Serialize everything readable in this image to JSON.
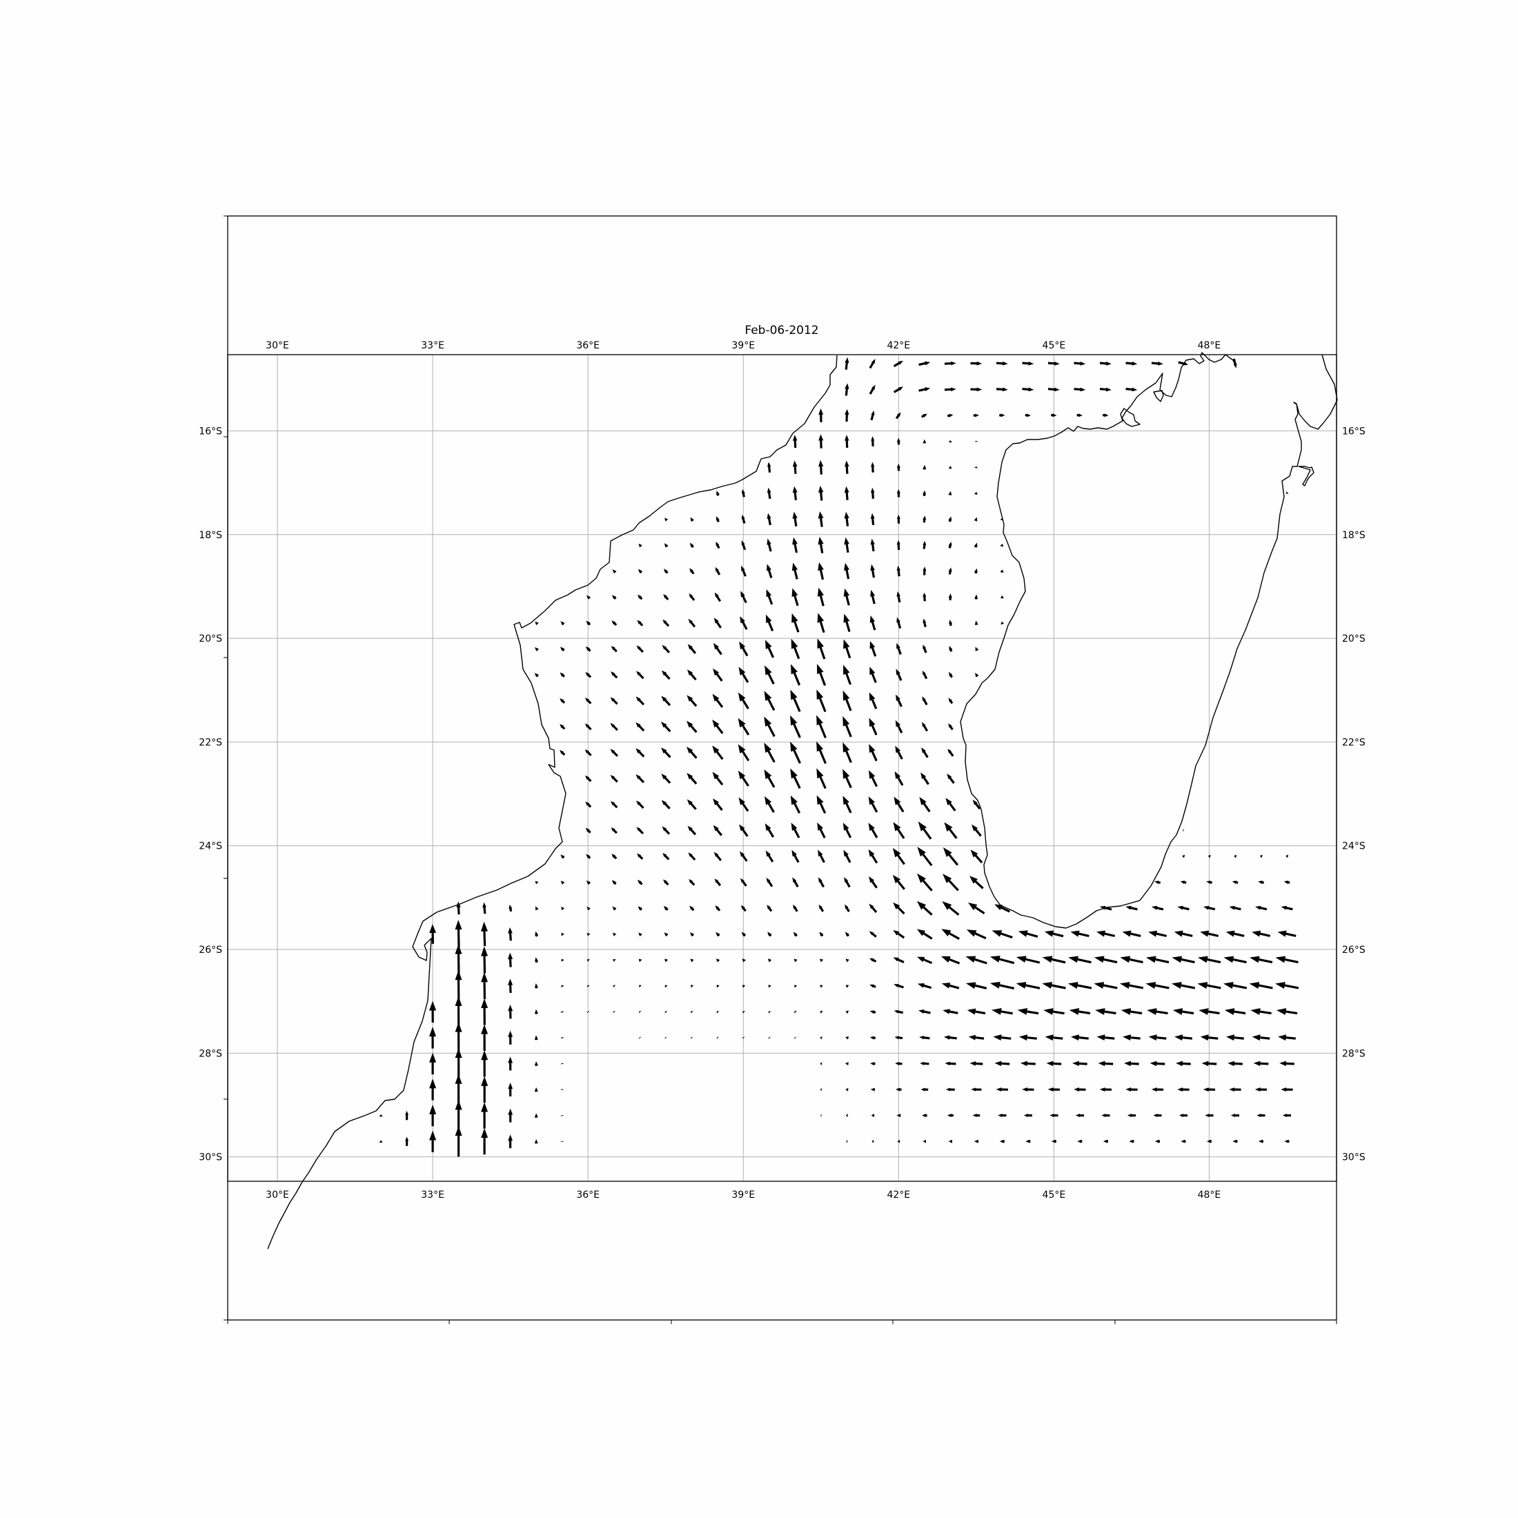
{
  "title": "Feb-06-2012",
  "lon_ticks": [
    {
      "value": 30,
      "label": "30°E"
    },
    {
      "value": 33,
      "label": "33°E"
    },
    {
      "value": 36,
      "label": "36°E"
    },
    {
      "value": 39,
      "label": "39°E"
    },
    {
      "value": 42,
      "label": "42°E"
    },
    {
      "value": 45,
      "label": "45°E"
    },
    {
      "value": 48,
      "label": "48°E"
    }
  ],
  "lat_ticks": [
    {
      "value": -16,
      "label": "16°S"
    },
    {
      "value": -18,
      "label": "18°S"
    },
    {
      "value": -20,
      "label": "20°S"
    },
    {
      "value": -22,
      "label": "22°S"
    },
    {
      "value": -24,
      "label": "24°S"
    },
    {
      "value": -26,
      "label": "26°S"
    },
    {
      "value": -28,
      "label": "28°S"
    },
    {
      "value": -30,
      "label": "30°S"
    }
  ],
  "extent": {
    "lon_min": 29.04,
    "lon_max": 50.46,
    "lat_min": -30.47,
    "lat_max": -14.53
  },
  "grid": true,
  "vector_field": {
    "description_type": "quiver",
    "lon_start": 31.5,
    "lon_step": 0.5,
    "lon_count": 37,
    "lat_start": -29.7,
    "lat_step": 0.5,
    "lat_count": 31,
    "pattern": "Mozambique Channel currents: strong northward flow along the southwest African coast (≈33–35°E, 25–30°S); NW flow through central channel; westward inflow at the southern tip of Madagascar; SW flow along the east of the domain; eastward flow in the far north."
  },
  "land": {
    "africa": "Mozambique / South Africa coastline",
    "madagascar": "Madagascar"
  }
}
